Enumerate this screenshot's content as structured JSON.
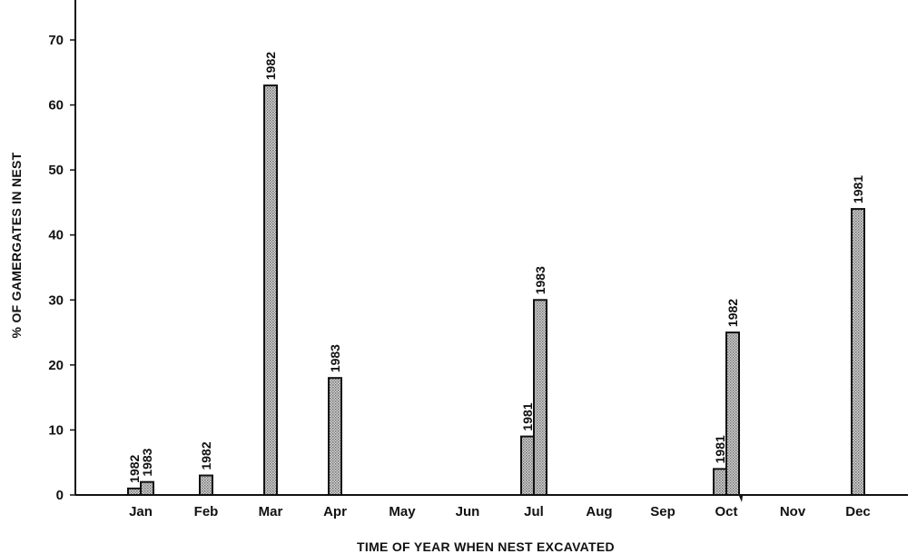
{
  "chart_data": {
    "type": "bar",
    "title": "",
    "xlabel": "TIME OF YEAR WHEN NEST EXCAVATED",
    "ylabel": "% OF GAMERGATES IN NEST",
    "ylim": [
      0,
      72
    ],
    "yticks": [
      0,
      10,
      20,
      30,
      40,
      50,
      60,
      70
    ],
    "ytick_labels": [
      "0",
      "10",
      "20",
      "30",
      "40",
      "50",
      "60",
      "70"
    ],
    "categories": [
      "Jan",
      "Feb",
      "Mar",
      "Apr",
      "May",
      "Jun",
      "Jul",
      "Aug",
      "Sep",
      "Oct",
      "Nov",
      "Dec"
    ],
    "grid": false,
    "legend": "none",
    "bar_fill": "#b9b9b9",
    "bar_stroke": "#111111",
    "bars": [
      {
        "month": "Jan",
        "year_label": "1982",
        "value": 1
      },
      {
        "month": "Jan",
        "year_label": "1983",
        "value": 2
      },
      {
        "month": "Feb",
        "year_label": "1982",
        "value": 3
      },
      {
        "month": "Mar",
        "year_label": "1982",
        "value": 63
      },
      {
        "month": "Apr",
        "year_label": "1983",
        "value": 18
      },
      {
        "month": "Jul",
        "year_label": "1981",
        "value": 9
      },
      {
        "month": "Jul",
        "year_label": "1983",
        "value": 30
      },
      {
        "month": "Oct",
        "year_label": "1981",
        "value": 4
      },
      {
        "month": "Oct",
        "year_label": "1982",
        "value": 25
      },
      {
        "month": "Dec",
        "year_label": "1981",
        "value": 44
      }
    ]
  }
}
